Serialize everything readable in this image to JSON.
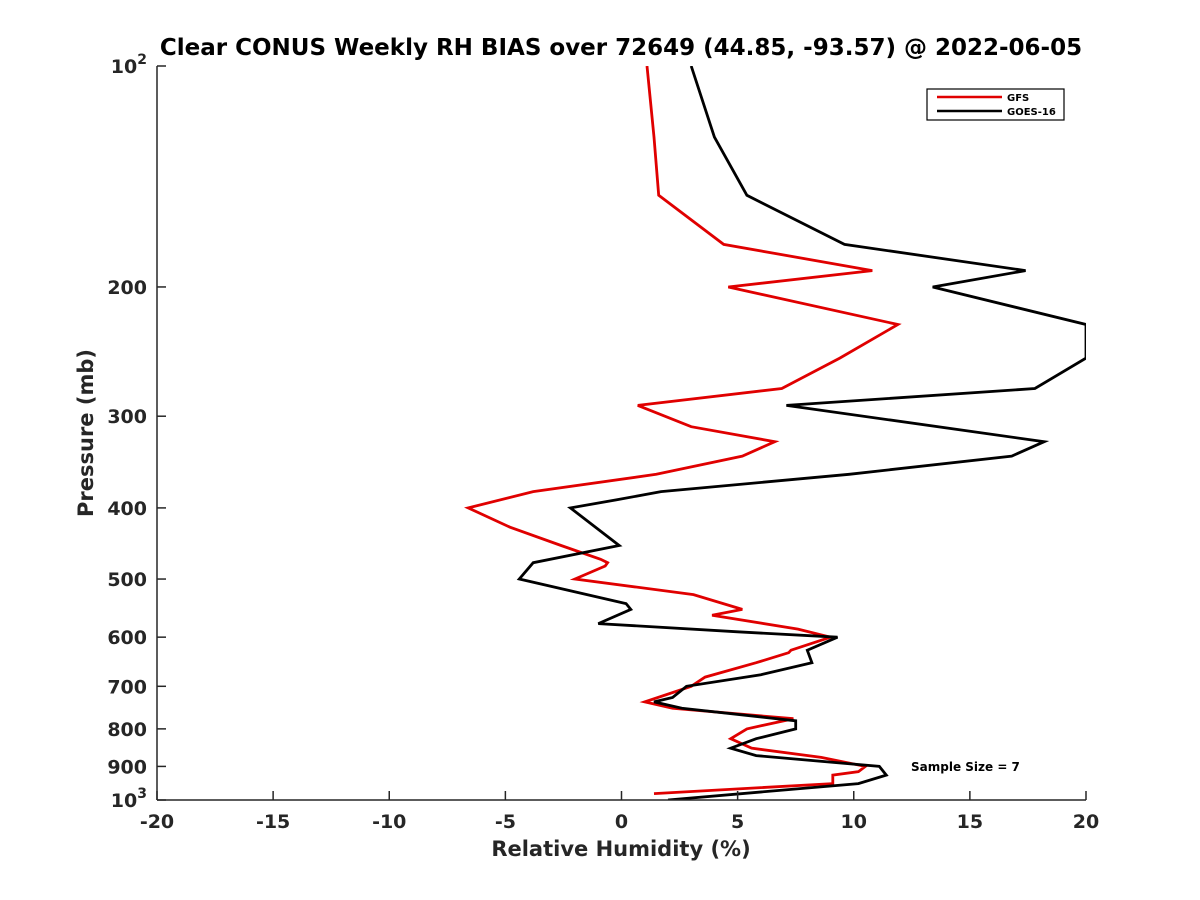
{
  "chart_data": {
    "type": "line",
    "title": "Clear CONUS Weekly RH BIAS over 72649 (44.85, -93.57) @ 2022-06-05",
    "xlabel": "Relative Humidity (%)",
    "ylabel": "Pressure (mb)",
    "xlim": [
      -20,
      20
    ],
    "ylim": [
      100,
      1000
    ],
    "y_scale": "log",
    "y_reversed": true,
    "grid": false,
    "legend_position": "top-right",
    "annotation": "Sample Size = 7",
    "x_ticks": [
      -20,
      -15,
      -10,
      -5,
      0,
      5,
      10,
      15,
      20
    ],
    "x_tick_labels": [
      "-20",
      "-15",
      "-10",
      "-5",
      "0",
      "5",
      "10",
      "15",
      "20"
    ],
    "y_ticks": [
      100,
      200,
      300,
      400,
      500,
      600,
      700,
      800,
      900,
      1000
    ],
    "y_tick_labels": [
      {
        "base": "10",
        "exp": "2"
      },
      {
        "base": "200",
        "exp": ""
      },
      {
        "base": "300",
        "exp": ""
      },
      {
        "base": "400",
        "exp": ""
      },
      {
        "base": "500",
        "exp": ""
      },
      {
        "base": "600",
        "exp": ""
      },
      {
        "base": "700",
        "exp": ""
      },
      {
        "base": "800",
        "exp": ""
      },
      {
        "base": "900",
        "exp": ""
      },
      {
        "base": "10",
        "exp": "3"
      }
    ],
    "series": [
      {
        "name": "GFS",
        "color": "#e00000",
        "points": [
          [
            1.1,
            100
          ],
          [
            1.4,
            125
          ],
          [
            1.6,
            150
          ],
          [
            4.4,
            175
          ],
          [
            10.8,
            190
          ],
          [
            4.6,
            200
          ],
          [
            11.9,
            225
          ],
          [
            9.4,
            250
          ],
          [
            6.9,
            275
          ],
          [
            0.7,
            290
          ],
          [
            3.0,
            310
          ],
          [
            6.6,
            325
          ],
          [
            5.2,
            340
          ],
          [
            1.5,
            360
          ],
          [
            -3.8,
            380
          ],
          [
            -6.6,
            400
          ],
          [
            -4.8,
            425
          ],
          [
            -2.6,
            450
          ],
          [
            -0.9,
            470
          ],
          [
            -0.6,
            475
          ],
          [
            -0.7,
            480
          ],
          [
            -2.0,
            500
          ],
          [
            3.1,
            525
          ],
          [
            5.2,
            550
          ],
          [
            3.9,
            560
          ],
          [
            7.6,
            585
          ],
          [
            9.0,
            600
          ],
          [
            7.3,
            625
          ],
          [
            7.2,
            630
          ],
          [
            5.8,
            650
          ],
          [
            3.6,
            680
          ],
          [
            3.0,
            700
          ],
          [
            1.0,
            735
          ],
          [
            2.2,
            750
          ],
          [
            7.4,
            775
          ],
          [
            5.4,
            800
          ],
          [
            4.7,
            825
          ],
          [
            5.6,
            850
          ],
          [
            8.6,
            875
          ],
          [
            10.5,
            900
          ],
          [
            10.2,
            915
          ],
          [
            9.1,
            925
          ],
          [
            9.1,
            950
          ],
          [
            1.4,
            980
          ]
        ]
      },
      {
        "name": "GOES-16",
        "color": "#000000",
        "points": [
          [
            3.0,
            100
          ],
          [
            4.0,
            125
          ],
          [
            5.4,
            150
          ],
          [
            9.6,
            175
          ],
          [
            17.4,
            190
          ],
          [
            13.4,
            200
          ],
          [
            20.0,
            225
          ],
          [
            20.0,
            250
          ],
          [
            17.8,
            275
          ],
          [
            7.1,
            290
          ],
          [
            18.2,
            325
          ],
          [
            16.8,
            340
          ],
          [
            9.8,
            360
          ],
          [
            1.7,
            380
          ],
          [
            -0.2,
            390
          ],
          [
            -2.2,
            400
          ],
          [
            -0.1,
            450
          ],
          [
            -3.8,
            475
          ],
          [
            -4.4,
            500
          ],
          [
            0.2,
            540
          ],
          [
            0.4,
            550
          ],
          [
            -1.0,
            575
          ],
          [
            5.0,
            590
          ],
          [
            9.3,
            600
          ],
          [
            8.0,
            625
          ],
          [
            8.2,
            650
          ],
          [
            6.0,
            675
          ],
          [
            2.8,
            700
          ],
          [
            2.2,
            725
          ],
          [
            1.4,
            735
          ],
          [
            2.6,
            750
          ],
          [
            7.5,
            780
          ],
          [
            7.5,
            800
          ],
          [
            5.8,
            825
          ],
          [
            4.7,
            850
          ],
          [
            5.8,
            870
          ],
          [
            11.1,
            900
          ],
          [
            11.4,
            925
          ],
          [
            10.2,
            950
          ],
          [
            2.0,
            1000
          ]
        ]
      }
    ]
  }
}
